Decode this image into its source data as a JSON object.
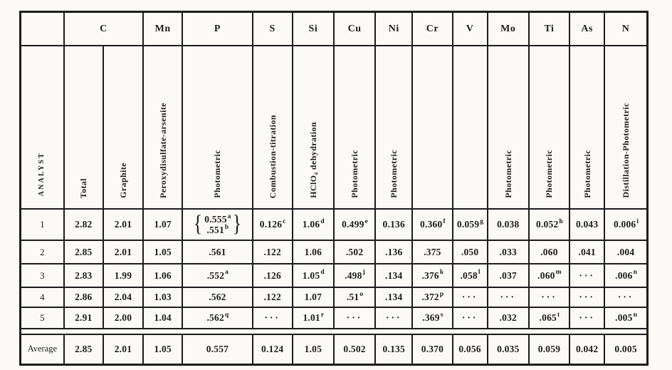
{
  "page": {
    "ink": "#1c1c1c",
    "paper": "#fbfaf7"
  },
  "table": {
    "top_header": [
      {
        "name": "corner",
        "label": "",
        "span": 1
      },
      {
        "name": "carbon",
        "label": "C",
        "span": 2
      },
      {
        "name": "manganese",
        "label": "Mn",
        "span": 1
      },
      {
        "name": "phosphorus",
        "label": "P",
        "span": 1
      },
      {
        "name": "sulfur",
        "label": "S",
        "span": 1
      },
      {
        "name": "silicon",
        "label": "Si",
        "span": 1
      },
      {
        "name": "copper",
        "label": "Cu",
        "span": 1
      },
      {
        "name": "nickel",
        "label": "Ni",
        "span": 1
      },
      {
        "name": "chromium",
        "label": "Cr",
        "span": 1
      },
      {
        "name": "vanadium",
        "label": "V",
        "span": 1
      },
      {
        "name": "molybdenum",
        "label": "Mo",
        "span": 1
      },
      {
        "name": "titanium",
        "label": "Ti",
        "span": 1
      },
      {
        "name": "arsenic",
        "label": "As",
        "span": 1
      },
      {
        "name": "nitrogen",
        "label": "N",
        "span": 1
      }
    ],
    "method_header": [
      "ANALYST",
      "Total",
      "Graphite",
      "Peroxydisulfate-arsenite",
      "Photometric",
      "Combustion-titration",
      "HClO₄ dehydration",
      "Photometric",
      "Photometric",
      "",
      "",
      "Photometric",
      "Photometric",
      "Photometric",
      "Distillation-Photometric"
    ],
    "rows": [
      {
        "label": "1",
        "values": [
          "2.82",
          "2.01",
          "1.07",
          {
            "brace": [
              "0.555^a",
              ".551^b"
            ]
          },
          "0.126^c",
          "1.06^d",
          "0.499^e",
          "0.136",
          "0.360^f",
          "0.059^g",
          "0.038",
          "0.052^h",
          "0.043",
          "0.006^i"
        ]
      },
      {
        "label": "2",
        "values": [
          "2.85",
          "2.01",
          "1.05",
          ".561",
          ".122",
          "1.06",
          ".502",
          ".136",
          ".375",
          ".050",
          ".033",
          ".060",
          ".041",
          ".004"
        ]
      },
      {
        "label": "3",
        "values": [
          "2.83",
          "1.99",
          "1.06",
          ".552^a",
          ".126",
          "1.05^d",
          ".498^j",
          ".134",
          ".376^k",
          ".058^l",
          ".037",
          ".060^m",
          "...",
          ".006^n"
        ]
      },
      {
        "label": "4",
        "values": [
          "2.86",
          "2.04",
          "1.03",
          ".562",
          ".122",
          "1.07",
          ".51^o",
          ".134",
          ".372^p",
          "...",
          "...",
          "...",
          "...",
          "..."
        ]
      },
      {
        "label": "5",
        "values": [
          "2.91",
          "2.00",
          "1.04",
          ".562^q",
          "...",
          "1.01^r",
          "...",
          "...",
          ".369^s",
          "...",
          ".032",
          ".065^t",
          "...",
          ".005^n"
        ]
      }
    ],
    "average": {
      "label": "Average",
      "values": [
        "2.85",
        "2.01",
        "1.05",
        "0.557",
        "0.124",
        "1.05",
        "0.502",
        "0.135",
        "0.370",
        "0.056",
        "0.035",
        "0.059",
        "0.042",
        "0.005"
      ]
    }
  }
}
